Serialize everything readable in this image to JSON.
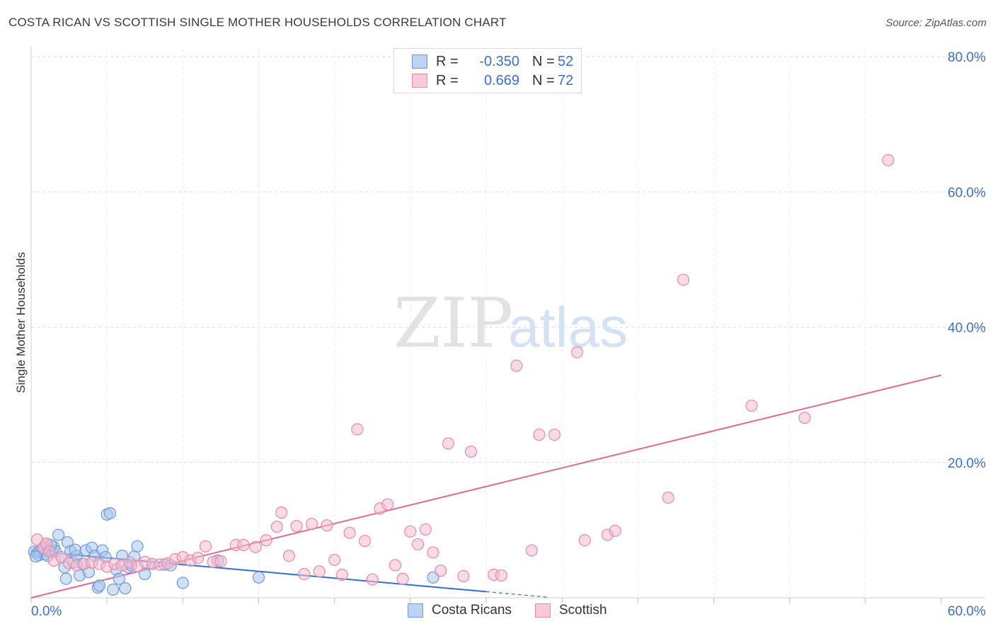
{
  "title": "COSTA RICAN VS SCOTTISH SINGLE MOTHER HOUSEHOLDS CORRELATION CHART",
  "source": "Source: ZipAtlas.com",
  "watermark": {
    "zip": "ZIP",
    "atlas": "atlas"
  },
  "colors": {
    "blue_fill": "#a9c6ef",
    "blue_stroke": "#6f98d8",
    "blue_line": "#2f6fcf",
    "pink_fill": "#f6bccd",
    "pink_stroke": "#e98aa6",
    "pink_line": "#e06a93",
    "tick_label": "#3a6fd1",
    "grid": "#dcdcdc"
  },
  "legend": {
    "rows": [
      {
        "r_label": "R =",
        "r_value": "-0.350",
        "n_label": "N =",
        "n_value": "52"
      },
      {
        "r_label": "R =",
        "r_value": "0.669",
        "n_label": "N =",
        "n_value": "72"
      }
    ]
  },
  "bottom_legend": [
    "Costa Ricans",
    "Scottish"
  ],
  "chart_data": {
    "type": "scatter",
    "title": "COSTA RICAN VS SCOTTISH SINGLE MOTHER HOUSEHOLDS CORRELATION CHART",
    "xlabel": "",
    "ylabel": "Single Mother Households",
    "xlim": [
      0,
      60
    ],
    "ylim": [
      0,
      80
    ],
    "x_tick_labels": [
      "0.0%",
      "60.0%"
    ],
    "y_ticks": [
      20,
      40,
      60,
      80
    ],
    "y_tick_labels": [
      "20.0%",
      "40.0%",
      "60.0%",
      "80.0%"
    ],
    "series": [
      {
        "name": "Costa Ricans",
        "R": -0.35,
        "N": 52,
        "trend": {
          "x0": 0,
          "y0": 6.9,
          "x1": 30,
          "y1": 0.9,
          "dashed_to_x": 34
        },
        "points": [
          [
            0.2,
            6.8
          ],
          [
            0.4,
            6.6
          ],
          [
            0.5,
            6.3
          ],
          [
            0.6,
            6.9
          ],
          [
            0.8,
            7.2
          ],
          [
            0.9,
            6.4
          ],
          [
            1.0,
            8.0
          ],
          [
            1.1,
            6.2
          ],
          [
            1.2,
            7.0
          ],
          [
            1.4,
            6.8
          ],
          [
            1.5,
            7.5
          ],
          [
            1.6,
            6.9
          ],
          [
            1.8,
            9.3
          ],
          [
            2.0,
            6.0
          ],
          [
            2.2,
            4.5
          ],
          [
            2.3,
            2.8
          ],
          [
            2.4,
            8.2
          ],
          [
            2.6,
            6.9
          ],
          [
            2.8,
            5.2
          ],
          [
            3.0,
            6.2
          ],
          [
            3.2,
            3.3
          ],
          [
            3.4,
            5.0
          ],
          [
            3.6,
            7.0
          ],
          [
            3.8,
            3.8
          ],
          [
            4.0,
            7.4
          ],
          [
            4.2,
            6.2
          ],
          [
            4.4,
            1.5
          ],
          [
            4.5,
            1.8
          ],
          [
            4.7,
            7.0
          ],
          [
            4.9,
            6.0
          ],
          [
            5.0,
            12.3
          ],
          [
            5.2,
            12.5
          ],
          [
            5.4,
            1.2
          ],
          [
            5.6,
            4.2
          ],
          [
            5.8,
            2.8
          ],
          [
            6.0,
            6.2
          ],
          [
            6.2,
            1.4
          ],
          [
            6.4,
            4.5
          ],
          [
            6.6,
            4.8
          ],
          [
            6.8,
            6.1
          ],
          [
            7.0,
            7.6
          ],
          [
            7.5,
            3.5
          ],
          [
            8.0,
            5.0
          ],
          [
            8.8,
            4.9
          ],
          [
            9.2,
            4.8
          ],
          [
            10.0,
            2.2
          ],
          [
            12.3,
            5.5
          ],
          [
            15.0,
            3.0
          ],
          [
            26.5,
            3.0
          ],
          [
            1.3,
            7.8
          ],
          [
            0.3,
            6.1
          ],
          [
            2.9,
            7.1
          ]
        ]
      },
      {
        "name": "Scottish",
        "R": 0.669,
        "N": 72,
        "trend": {
          "x0": 0,
          "y0": 0.0,
          "x1": 60,
          "y1": 32.9
        },
        "points": [
          [
            0.4,
            8.6
          ],
          [
            0.8,
            7.4
          ],
          [
            1.0,
            8.0
          ],
          [
            1.2,
            6.8
          ],
          [
            1.5,
            5.5
          ],
          [
            2.0,
            6.0
          ],
          [
            2.5,
            5.1
          ],
          [
            3.0,
            4.8
          ],
          [
            3.5,
            5.0
          ],
          [
            4.0,
            5.2
          ],
          [
            4.5,
            5.0
          ],
          [
            5.0,
            4.6
          ],
          [
            5.5,
            5.0
          ],
          [
            6.0,
            4.8
          ],
          [
            6.5,
            5.2
          ],
          [
            7.0,
            4.7
          ],
          [
            7.5,
            5.3
          ],
          [
            8.0,
            5.0
          ],
          [
            8.5,
            4.9
          ],
          [
            9.0,
            5.1
          ],
          [
            9.5,
            5.7
          ],
          [
            10.0,
            6.0
          ],
          [
            10.5,
            5.5
          ],
          [
            11.0,
            5.9
          ],
          [
            11.5,
            7.6
          ],
          [
            12.0,
            5.3
          ],
          [
            12.5,
            5.4
          ],
          [
            13.5,
            7.8
          ],
          [
            14.0,
            7.8
          ],
          [
            14.8,
            7.5
          ],
          [
            15.5,
            8.5
          ],
          [
            16.2,
            10.5
          ],
          [
            16.5,
            12.6
          ],
          [
            17.0,
            6.2
          ],
          [
            17.5,
            10.6
          ],
          [
            18.0,
            3.5
          ],
          [
            18.5,
            10.9
          ],
          [
            19.0,
            3.9
          ],
          [
            19.5,
            10.7
          ],
          [
            20.0,
            5.6
          ],
          [
            20.5,
            3.4
          ],
          [
            21.0,
            9.6
          ],
          [
            21.5,
            24.9
          ],
          [
            22.0,
            8.4
          ],
          [
            22.5,
            2.7
          ],
          [
            23.0,
            13.2
          ],
          [
            23.5,
            13.8
          ],
          [
            24.0,
            4.8
          ],
          [
            24.5,
            2.8
          ],
          [
            25.0,
            9.8
          ],
          [
            25.5,
            7.9
          ],
          [
            26.0,
            10.1
          ],
          [
            26.5,
            6.7
          ],
          [
            27.0,
            4.0
          ],
          [
            27.5,
            22.8
          ],
          [
            28.5,
            3.2
          ],
          [
            29.0,
            21.6
          ],
          [
            30.5,
            3.4
          ],
          [
            31.0,
            3.3
          ],
          [
            32.0,
            34.3
          ],
          [
            33.0,
            7.0
          ],
          [
            33.5,
            24.1
          ],
          [
            34.5,
            24.1
          ],
          [
            36.0,
            36.3
          ],
          [
            36.5,
            8.5
          ],
          [
            38.0,
            9.3
          ],
          [
            38.5,
            9.9
          ],
          [
            42.0,
            14.8
          ],
          [
            43.0,
            47.0
          ],
          [
            47.5,
            28.4
          ],
          [
            51.0,
            26.6
          ],
          [
            56.5,
            64.7
          ]
        ]
      }
    ]
  }
}
